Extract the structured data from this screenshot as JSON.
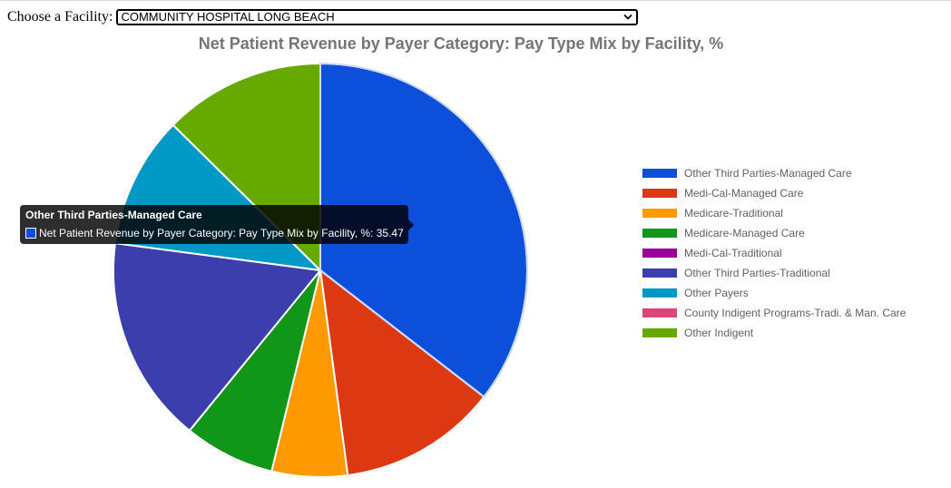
{
  "facility_selector": {
    "label": "Choose a Facility:",
    "selected": "COMMUNITY HOSPITAL LONG BEACH"
  },
  "chart_data": {
    "type": "pie",
    "title": "Net Patient Revenue by Payer Category: Pay Type Mix by Facility, %",
    "legend_position": "right",
    "series_name": "Net Patient Revenue by Payer Category: Pay Type Mix by Facility, %",
    "labels": [
      "Other Third Parties-Managed Care",
      "Medi-Cal-Managed Care",
      "Medicare-Traditional",
      "Medicare-Managed Care",
      "Medi-Cal-Traditional",
      "Other Third Parties-Traditional",
      "Other Payers",
      "County Indigent Programs-Tradi. & Man. Care",
      "Other Indigent"
    ],
    "values": [
      35.47,
      12.4,
      5.9,
      7.1,
      0,
      16.2,
      10.3,
      0,
      12.6
    ],
    "colors": [
      "#0b4fdb",
      "#dc3912",
      "#ff9900",
      "#109618",
      "#990099",
      "#3b3eac",
      "#0099c6",
      "#dd4477",
      "#66aa00"
    ]
  },
  "tooltip": {
    "title": "Other Third Parties-Managed Care",
    "text": "Net Patient Revenue by Payer Category: Pay Type Mix by Facility, %: 35.47"
  }
}
